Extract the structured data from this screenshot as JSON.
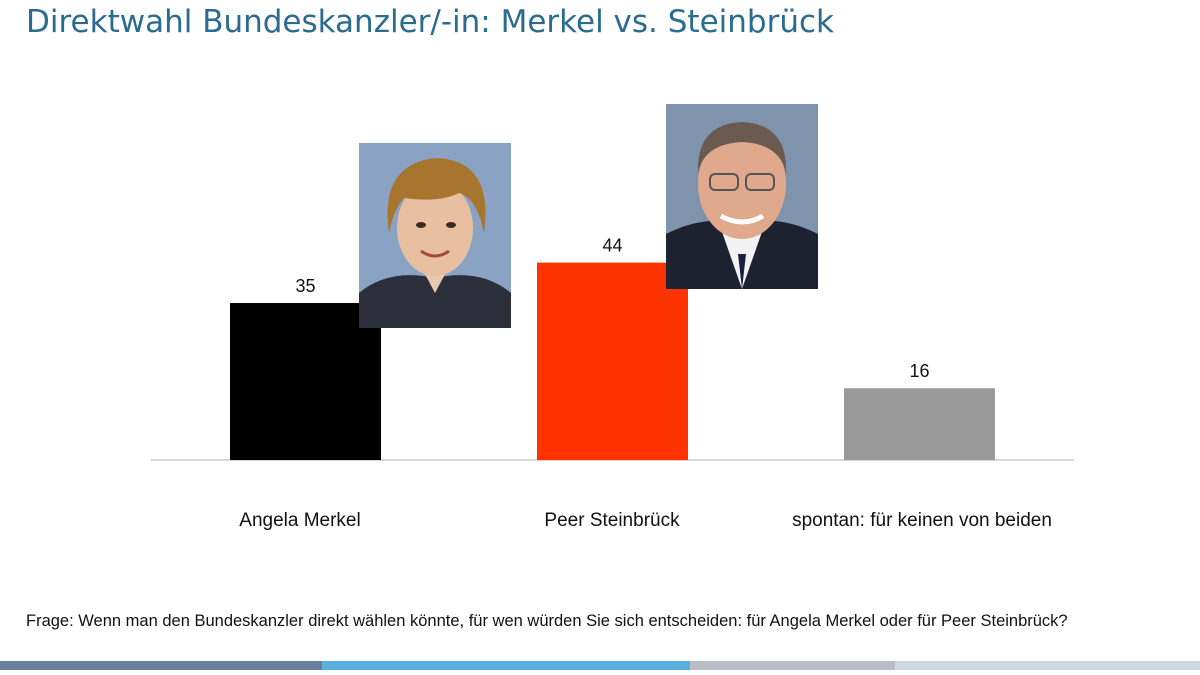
{
  "title": "Direktwahl Bundeskanzler/-in: Merkel vs. Steinbrück",
  "question": "Frage: Wenn man den Bundeskanzler direkt wählen könnte, für wen würden Sie sich entscheiden: für Angela Merkel oder für Peer Steinbrück?",
  "chart_data": {
    "type": "bar",
    "title": "Direktwahl Bundeskanzler/-in: Merkel vs. Steinbrück",
    "categories": [
      "Angela Merkel",
      "Peer Steinbrück",
      "spontan: für keinen von beiden"
    ],
    "values": [
      35,
      44,
      16
    ],
    "colors": [
      "#000000",
      "#ff3300",
      "#999999"
    ],
    "ylim": [
      0,
      50
    ],
    "grid": false,
    "xlabel": "",
    "ylabel": ""
  },
  "photos": [
    "Angela Merkel portrait",
    "Peer Steinbrück portrait"
  ],
  "footer_stripe_colors": [
    "#6a7f99",
    "#5aaee0",
    "#b9bdc5",
    "#d0d9e1"
  ]
}
